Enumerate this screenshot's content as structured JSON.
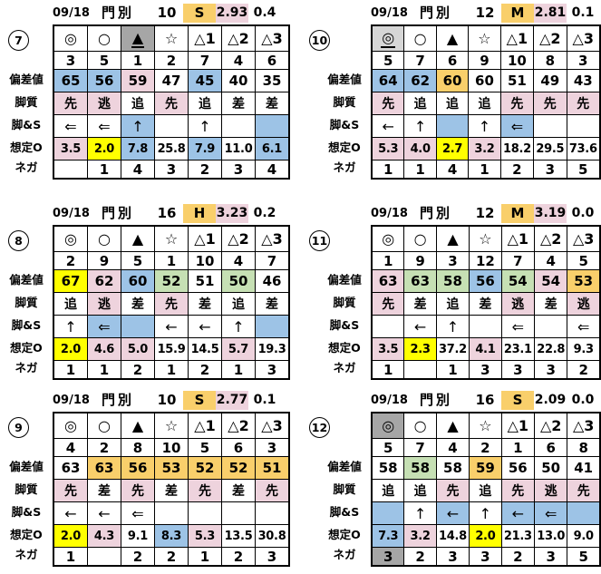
{
  "colors": {
    "orange": "#F9CF6B",
    "pink": "#EED3DD",
    "blue": "#9DC3E6",
    "green": "#C6E0B4",
    "yellow": "#FFFF00",
    "grayDark": "#A6A6A6",
    "grayLight": "#D6D6D6"
  },
  "row_labels": [
    "偏差値",
    "脚質",
    "脚&S",
    "想定O",
    "ネガ"
  ],
  "tables": [
    {
      "num": "7",
      "header": {
        "date": "09/18",
        "track": "門別",
        "race": "10",
        "pace": "S",
        "pace_bg": "orange",
        "index": "2.93",
        "index_bg": "pink",
        "gap": "0.4"
      },
      "marks": [
        "◎",
        "○",
        {
          "t": "▲",
          "bg": "grayDark",
          "u": true
        },
        "☆",
        "△1",
        "△2",
        "△3"
      ],
      "horse_numbers": [
        "3",
        "5",
        "1",
        "2",
        "7",
        "4",
        "6"
      ],
      "hensachi": [
        {
          "t": "65",
          "bg": "blue"
        },
        {
          "t": "56",
          "bg": "blue"
        },
        {
          "t": "59",
          "bg": "pink"
        },
        "47",
        {
          "t": "45",
          "bg": "blue"
        },
        "40",
        "35"
      ],
      "kyakushitsu": [
        {
          "t": "先",
          "bg": "pink"
        },
        {
          "t": "逃",
          "bg": "pink"
        },
        "追",
        {
          "t": "先",
          "bg": "pink"
        },
        "追",
        "差",
        "差"
      ],
      "ashi_s": [
        "⇐",
        "⇐",
        {
          "t": "↑",
          "bg": "blue"
        },
        "",
        "↑",
        "",
        {
          "t": "",
          "bg": "blue"
        }
      ],
      "souteio": [
        {
          "t": "3.5",
          "bg": "pink"
        },
        {
          "t": "2.0",
          "bg": "yellow"
        },
        {
          "t": "7.8",
          "bg": "blue"
        },
        "25.8",
        {
          "t": "7.9",
          "bg": "blue"
        },
        "11.0",
        {
          "t": "6.1",
          "bg": "blue"
        }
      ],
      "nega": [
        "",
        "1",
        "4",
        "3",
        "2",
        "3",
        "4"
      ]
    },
    {
      "num": "10",
      "header": {
        "date": "09/18",
        "track": "門別",
        "race": "12",
        "pace": "M",
        "pace_bg": "orange",
        "index": "2.81",
        "index_bg": "pink",
        "gap": "0.1"
      },
      "marks": [
        {
          "t": "◎",
          "bg": "grayLight",
          "u": true
        },
        "○",
        "▲",
        "☆",
        "△1",
        "△2",
        "△3"
      ],
      "horse_numbers": [
        "5",
        "7",
        "6",
        "9",
        "10",
        "8",
        "3"
      ],
      "hensachi": [
        {
          "t": "64",
          "bg": "blue"
        },
        {
          "t": "62",
          "bg": "blue"
        },
        {
          "t": "60",
          "bg": "orange"
        },
        "60",
        "51",
        "49",
        "43"
      ],
      "kyakushitsu": [
        {
          "t": "先",
          "bg": "pink"
        },
        "追",
        "追",
        "追",
        {
          "t": "先",
          "bg": "pink"
        },
        {
          "t": "先",
          "bg": "pink"
        },
        {
          "t": "先",
          "bg": "pink"
        }
      ],
      "ashi_s": [
        "←",
        "↑",
        {
          "t": "",
          "bg": "blue"
        },
        "↑",
        {
          "t": "⇐",
          "bg": "blue"
        },
        "",
        ""
      ],
      "souteio": [
        {
          "t": "5.3",
          "bg": "pink"
        },
        {
          "t": "4.0",
          "bg": "pink"
        },
        {
          "t": "2.7",
          "bg": "yellow"
        },
        {
          "t": "3.2",
          "bg": "pink"
        },
        "18.2",
        "29.5",
        "73.6"
      ],
      "nega": [
        "1",
        "1",
        "4",
        "1",
        "2",
        "3",
        "5"
      ]
    },
    {
      "num": "8",
      "header": {
        "date": "09/18",
        "track": "門別",
        "race": "16",
        "pace": "H",
        "pace_bg": "orange",
        "index": "3.23",
        "index_bg": "pink",
        "gap": "0.2"
      },
      "marks": [
        "◎",
        "○",
        "▲",
        "☆",
        "△1",
        "△2",
        "△3"
      ],
      "horse_numbers": [
        "2",
        "9",
        "5",
        "1",
        "10",
        "4",
        "7"
      ],
      "hensachi": [
        {
          "t": "67",
          "bg": "yellow"
        },
        {
          "t": "62",
          "bg": "pink"
        },
        {
          "t": "60",
          "bg": "blue"
        },
        {
          "t": "52",
          "bg": "green"
        },
        "51",
        {
          "t": "50",
          "bg": "green"
        },
        "46"
      ],
      "kyakushitsu": [
        "追",
        {
          "t": "逃",
          "bg": "pink"
        },
        "差",
        {
          "t": "先",
          "bg": "pink"
        },
        "差",
        "追",
        "差"
      ],
      "ashi_s": [
        "↑",
        {
          "t": "⇐",
          "bg": "blue"
        },
        {
          "t": "",
          "bg": "blue"
        },
        "←",
        "←",
        "↑",
        {
          "t": "",
          "bg": "blue"
        }
      ],
      "souteio": [
        {
          "t": "2.0",
          "bg": "yellow"
        },
        {
          "t": "4.6",
          "bg": "pink"
        },
        {
          "t": "5.0",
          "bg": "pink"
        },
        "15.9",
        "14.5",
        {
          "t": "5.7",
          "bg": "pink"
        },
        "19.3"
      ],
      "nega": [
        "1",
        "1",
        "2",
        "1",
        "2",
        "1",
        "3"
      ]
    },
    {
      "num": "11",
      "header": {
        "date": "09/18",
        "track": "門別",
        "race": "12",
        "pace": "M",
        "pace_bg": "orange",
        "index": "3.19",
        "index_bg": "pink",
        "gap": "0.0"
      },
      "marks": [
        "◎",
        "○",
        "▲",
        "☆",
        "△1",
        "△2",
        "△3"
      ],
      "horse_numbers": [
        "1",
        "9",
        "3",
        "12",
        "7",
        "4",
        "5"
      ],
      "hensachi": [
        {
          "t": "63",
          "bg": "pink"
        },
        {
          "t": "63",
          "bg": "green"
        },
        {
          "t": "58",
          "bg": "green"
        },
        {
          "t": "56",
          "bg": "blue"
        },
        {
          "t": "54",
          "bg": "green"
        },
        {
          "t": "54",
          "bg": "pink"
        },
        {
          "t": "53",
          "bg": "orange"
        }
      ],
      "kyakushitsu": [
        {
          "t": "先",
          "bg": "pink"
        },
        "差",
        "追",
        "差",
        {
          "t": "逃",
          "bg": "pink"
        },
        "差",
        {
          "t": "逃",
          "bg": "pink"
        }
      ],
      "ashi_s": [
        "",
        "←",
        "↑",
        "",
        "⇐",
        "",
        "⇐"
      ],
      "souteio": [
        {
          "t": "3.5",
          "bg": "pink"
        },
        {
          "t": "2.3",
          "bg": "yellow"
        },
        "37.2",
        {
          "t": "4.1",
          "bg": "pink"
        },
        "23.1",
        "22.8",
        "9.3"
      ],
      "nega": [
        "1",
        "",
        "1",
        "3",
        "3",
        "3",
        "2"
      ]
    },
    {
      "num": "9",
      "header": {
        "date": "09/18",
        "track": "門別",
        "race": "10",
        "pace": "S",
        "pace_bg": "orange",
        "index": "2.77",
        "index_bg": "pink",
        "gap": "0.1"
      },
      "marks": [
        "◎",
        "○",
        "▲",
        "☆",
        "△1",
        "△2",
        "△3"
      ],
      "horse_numbers": [
        "4",
        "2",
        "8",
        "10",
        "5",
        "6",
        "3"
      ],
      "hensachi": [
        "63",
        {
          "t": "63",
          "bg": "orange"
        },
        {
          "t": "56",
          "bg": "orange"
        },
        {
          "t": "53",
          "bg": "orange"
        },
        {
          "t": "52",
          "bg": "orange"
        },
        {
          "t": "52",
          "bg": "orange"
        },
        {
          "t": "51",
          "bg": "orange"
        }
      ],
      "kyakushitsu": [
        {
          "t": "先",
          "bg": "pink"
        },
        "差",
        {
          "t": "先",
          "bg": "pink"
        },
        "差",
        {
          "t": "先",
          "bg": "pink"
        },
        "差",
        {
          "t": "先",
          "bg": "pink"
        }
      ],
      "ashi_s": [
        "←",
        "←",
        "⇐",
        "",
        "",
        "",
        ""
      ],
      "souteio": [
        {
          "t": "2.0",
          "bg": "yellow"
        },
        {
          "t": "4.3",
          "bg": "pink"
        },
        "9.1",
        {
          "t": "8.3",
          "bg": "blue"
        },
        {
          "t": "5.3",
          "bg": "pink"
        },
        "13.5",
        "30.8"
      ],
      "nega": [
        "1",
        "",
        "2",
        "2",
        "1",
        "2",
        "3"
      ]
    },
    {
      "num": "12",
      "header": {
        "date": "09/18",
        "track": "門別",
        "race": "16",
        "pace": "S",
        "pace_bg": "orange",
        "index": "2.09",
        "index_bg": "",
        "gap": "0.0"
      },
      "marks": [
        {
          "t": "◎",
          "bg": "grayDark"
        },
        "○",
        "▲",
        "☆",
        "△1",
        "△2",
        "△3"
      ],
      "horse_numbers": [
        "5",
        "7",
        "4",
        "2",
        "1",
        "6",
        "8"
      ],
      "hensachi": [
        "58",
        {
          "t": "58",
          "bg": "green"
        },
        "58",
        {
          "t": "59",
          "bg": "orange"
        },
        "56",
        "50",
        "41"
      ],
      "kyakushitsu": [
        "追",
        "追",
        {
          "t": "先",
          "bg": "pink"
        },
        "追",
        {
          "t": "先",
          "bg": "pink"
        },
        {
          "t": "逃",
          "bg": "pink"
        },
        {
          "t": "先",
          "bg": "pink"
        }
      ],
      "ashi_s": [
        {
          "t": "",
          "bg": "blue"
        },
        "↑",
        {
          "t": "←",
          "bg": "blue"
        },
        "↑",
        {
          "t": "←",
          "bg": "blue"
        },
        {
          "t": "⇐",
          "bg": "blue"
        },
        {
          "t": "",
          "bg": "blue"
        }
      ],
      "souteio": [
        {
          "t": "7.3",
          "bg": "blue"
        },
        {
          "t": "3.2",
          "bg": "pink"
        },
        "14.8",
        {
          "t": "2.0",
          "bg": "yellow"
        },
        "21.3",
        "13.0",
        "9.0"
      ],
      "nega": [
        {
          "t": "3",
          "bg": "grayDark"
        },
        "2",
        "3",
        "3",
        "2",
        "3",
        "5"
      ]
    }
  ]
}
